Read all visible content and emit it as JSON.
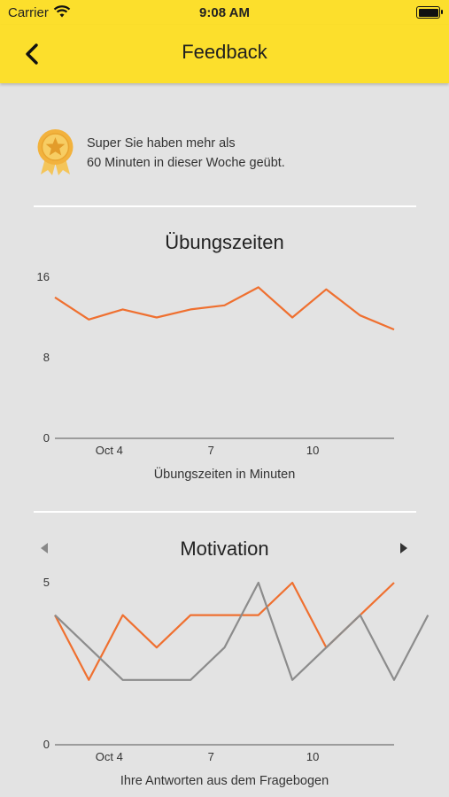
{
  "status_bar": {
    "carrier": "Carrier",
    "time": "9:08 AM"
  },
  "nav": {
    "title": "Feedback"
  },
  "achievement": {
    "line1": "Super Sie haben mehr als",
    "line2": "60 Minuten in dieser Woche geübt."
  },
  "colors": {
    "accent": "#fcdf2c",
    "orange": "#ef7030",
    "gray": "#8c8c8c"
  },
  "chart_data": [
    {
      "type": "line",
      "title": "Übungszeiten",
      "xlabel": "Übungszeiten in Minuten",
      "x_ticks": [
        "Oct 4",
        "7",
        "10"
      ],
      "y_ticks": [
        "0",
        "8",
        "16"
      ],
      "ylim": [
        0,
        16
      ],
      "series": [
        {
          "color": "#ef7030",
          "values": [
            14,
            11.8,
            12.8,
            12,
            12.8,
            13.2,
            15,
            12,
            14.8,
            12.2,
            10.8
          ]
        }
      ]
    },
    {
      "type": "line",
      "title": "Motivation",
      "xlabel": "Ihre Antworten aus dem Fragebogen",
      "x_ticks": [
        "Oct 4",
        "7",
        "10"
      ],
      "y_ticks": [
        "0",
        "5"
      ],
      "ylim": [
        0,
        5
      ],
      "series": [
        {
          "color": "#ef7030",
          "values": [
            4,
            2,
            4,
            3,
            4,
            4,
            4,
            5,
            3,
            4,
            5
          ]
        },
        {
          "color": "#8c8c8c",
          "values": [
            4,
            3,
            2,
            2,
            2,
            3,
            5,
            2,
            3,
            4,
            2,
            4
          ]
        }
      ]
    }
  ]
}
